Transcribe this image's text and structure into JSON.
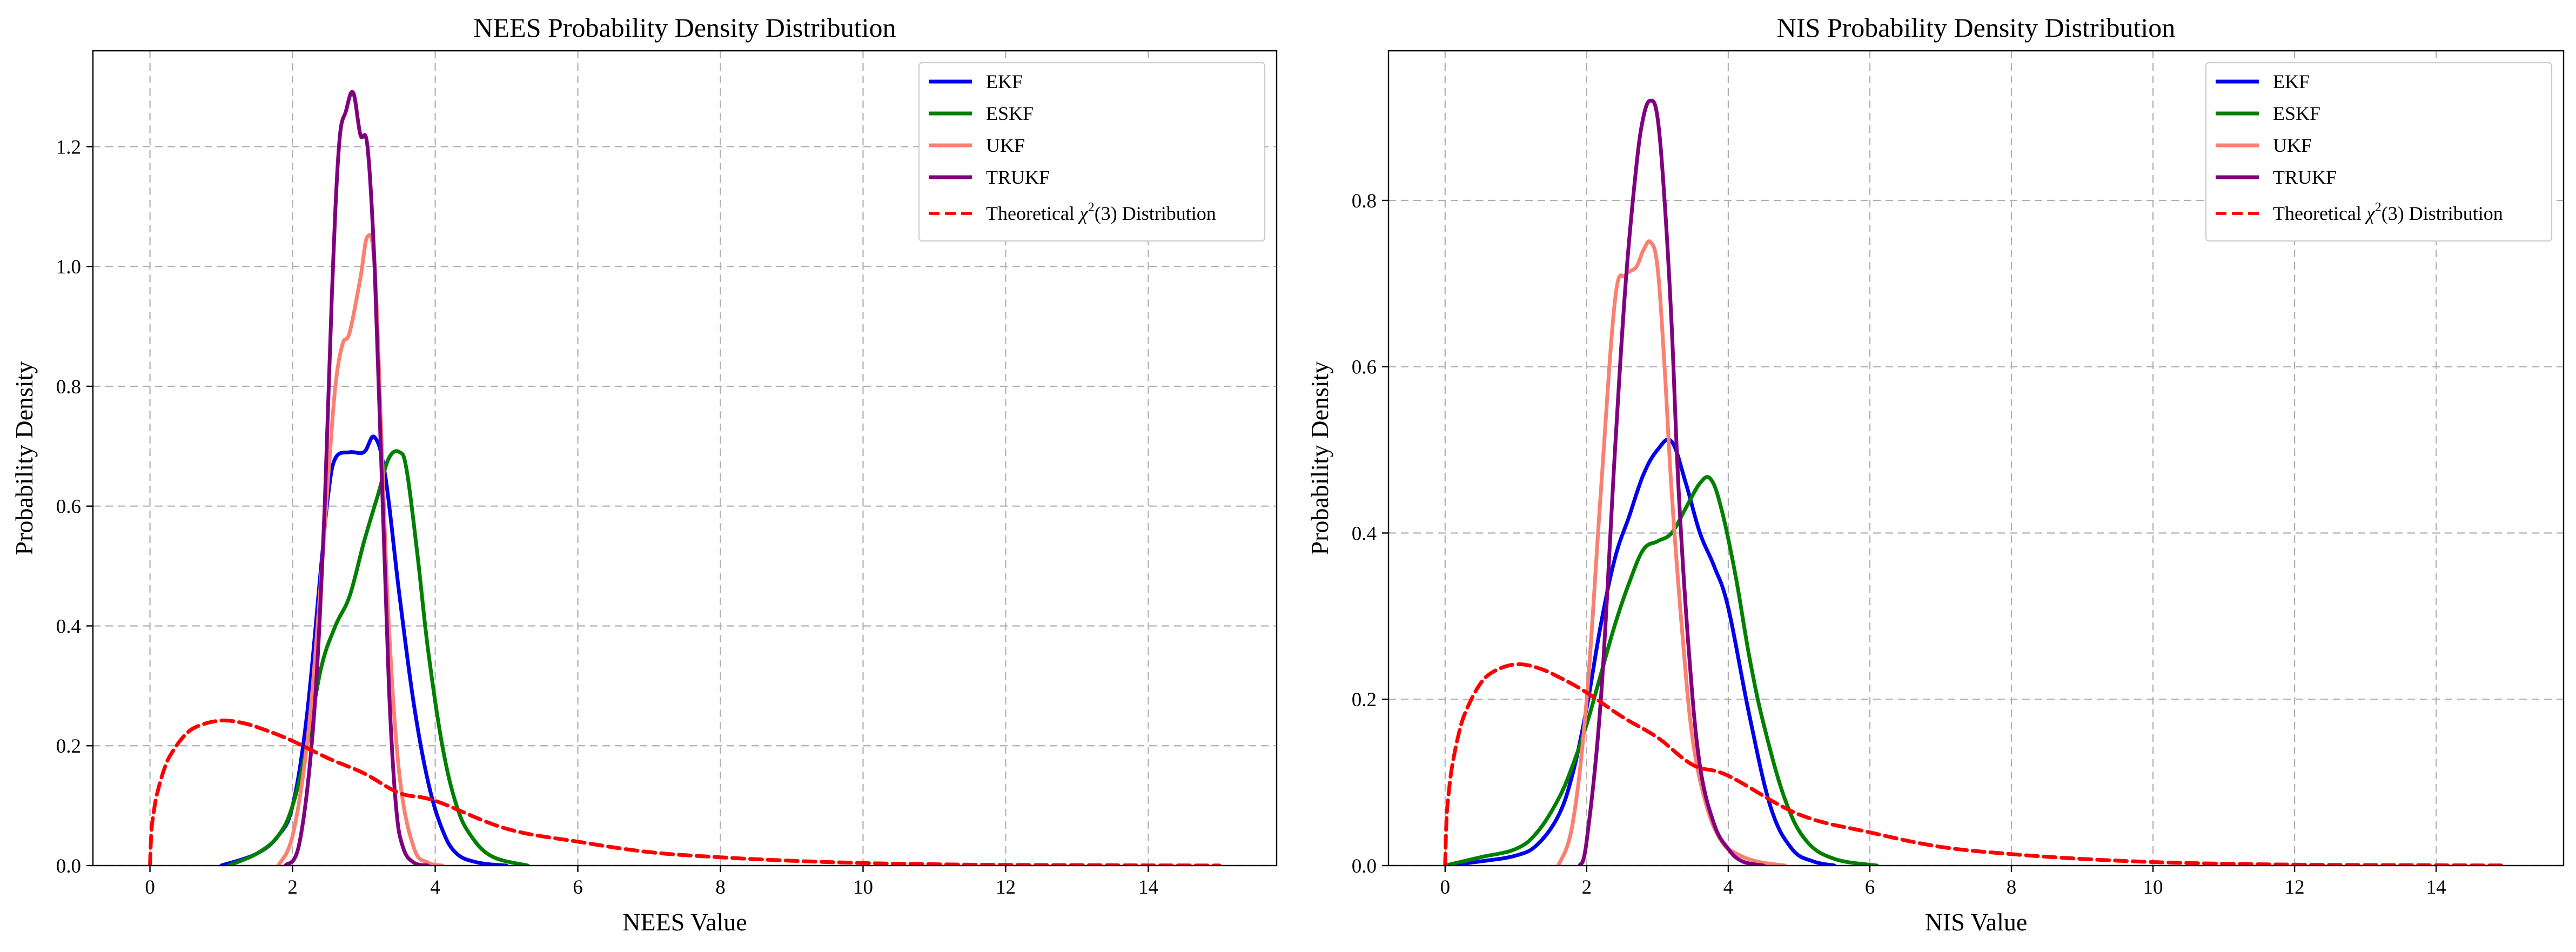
{
  "chart_data": [
    {
      "type": "line",
      "title": "NEES Probability Density Distribution",
      "xlabel": "NEES Value",
      "ylabel": "Probability Density",
      "xlim": [
        -0.8,
        15.8
      ],
      "ylim": [
        0,
        1.36
      ],
      "xticks": [
        0,
        2,
        4,
        6,
        8,
        10,
        12,
        14
      ],
      "yticks": [
        0.0,
        0.2,
        0.4,
        0.6,
        0.8,
        1.0,
        1.2
      ],
      "grid": true,
      "legend_position": "top-right",
      "series": [
        {
          "name": "EKF",
          "color": "#0000ee",
          "dashed": false,
          "x": [
            1.0,
            1.5,
            1.8,
            2.0,
            2.2,
            2.4,
            2.5,
            2.6,
            2.8,
            3.0,
            3.15,
            3.3,
            3.5,
            3.7,
            3.9,
            4.1,
            4.3,
            4.6,
            5.0
          ],
          "y": [
            0.0,
            0.02,
            0.05,
            0.1,
            0.25,
            0.5,
            0.62,
            0.68,
            0.69,
            0.69,
            0.715,
            0.65,
            0.45,
            0.27,
            0.14,
            0.06,
            0.02,
            0.005,
            0.0
          ]
        },
        {
          "name": "ESKF",
          "color": "#008000",
          "dashed": false,
          "x": [
            1.1,
            1.5,
            1.8,
            2.0,
            2.2,
            2.4,
            2.6,
            2.8,
            3.0,
            3.2,
            3.35,
            3.5,
            3.6,
            3.75,
            3.9,
            4.1,
            4.3,
            4.5,
            4.8,
            5.3
          ],
          "y": [
            0.0,
            0.02,
            0.05,
            0.1,
            0.2,
            0.33,
            0.4,
            0.45,
            0.54,
            0.62,
            0.68,
            0.69,
            0.66,
            0.52,
            0.36,
            0.2,
            0.1,
            0.05,
            0.015,
            0.0
          ]
        },
        {
          "name": "UKF",
          "color": "#fa8072",
          "dashed": false,
          "x": [
            1.8,
            2.0,
            2.2,
            2.35,
            2.5,
            2.6,
            2.7,
            2.8,
            2.95,
            3.05,
            3.15,
            3.25,
            3.35,
            3.5,
            3.7,
            3.9,
            4.1
          ],
          "y": [
            0.0,
            0.05,
            0.2,
            0.4,
            0.65,
            0.8,
            0.87,
            0.89,
            0.98,
            1.05,
            1.0,
            0.7,
            0.4,
            0.15,
            0.03,
            0.005,
            0.0
          ]
        },
        {
          "name": "TRUKF",
          "color": "#800080",
          "dashed": false,
          "x": [
            1.9,
            2.1,
            2.3,
            2.45,
            2.55,
            2.65,
            2.75,
            2.85,
            2.95,
            3.05,
            3.15,
            3.25,
            3.35,
            3.45,
            3.55,
            3.7,
            3.9
          ],
          "y": [
            0.0,
            0.04,
            0.25,
            0.6,
            0.95,
            1.2,
            1.26,
            1.29,
            1.22,
            1.2,
            1.0,
            0.65,
            0.3,
            0.1,
            0.03,
            0.005,
            0.0
          ]
        },
        {
          "name": "Theoretical χ²(3) Distribution",
          "color": "#ff0000",
          "dashed": true,
          "x": [
            0.0,
            0.02,
            0.05,
            0.1,
            0.2,
            0.3,
            0.5,
            0.7,
            1.0,
            1.3,
            1.6,
            2.0,
            2.5,
            3.0,
            3.5,
            4.0,
            5.0,
            6.0,
            7.0,
            8.0,
            9.0,
            10.0,
            11.0,
            12.0,
            13.0,
            14.0,
            15.0
          ],
          "y": [
            0.0,
            0.056,
            0.087,
            0.12,
            0.161,
            0.187,
            0.219,
            0.234,
            0.242,
            0.238,
            0.227,
            0.208,
            0.179,
            0.154,
            0.121,
            0.108,
            0.0615,
            0.0399,
            0.0225,
            0.0138,
            0.008,
            0.0042,
            0.0022,
            0.0011,
            0.0006,
            0.0003,
            0.0001
          ]
        }
      ]
    },
    {
      "type": "line",
      "title": "NIS Probability Density Distribution",
      "xlabel": "NIS Value",
      "ylabel": "Probability Density",
      "xlim": [
        -0.8,
        15.8
      ],
      "ylim": [
        0,
        0.98
      ],
      "xticks": [
        0,
        2,
        4,
        6,
        8,
        10,
        12,
        14
      ],
      "yticks": [
        0.0,
        0.2,
        0.4,
        0.6,
        0.8
      ],
      "grid": true,
      "legend_position": "top-right",
      "series": [
        {
          "name": "EKF",
          "color": "#0000ee",
          "dashed": false,
          "x": [
            0.0,
            0.5,
            1.0,
            1.3,
            1.6,
            1.8,
            2.0,
            2.2,
            2.4,
            2.6,
            2.8,
            3.0,
            3.2,
            3.4,
            3.6,
            3.8,
            4.0,
            4.3,
            4.6,
            4.9,
            5.2,
            5.5
          ],
          "y": [
            0.0,
            0.005,
            0.012,
            0.025,
            0.06,
            0.11,
            0.19,
            0.29,
            0.37,
            0.42,
            0.47,
            0.5,
            0.51,
            0.46,
            0.4,
            0.36,
            0.31,
            0.18,
            0.07,
            0.02,
            0.005,
            0.0
          ]
        },
        {
          "name": "ESKF",
          "color": "#008000",
          "dashed": false,
          "x": [
            0.0,
            0.5,
            1.0,
            1.3,
            1.6,
            1.8,
            2.0,
            2.2,
            2.4,
            2.6,
            2.8,
            3.0,
            3.2,
            3.4,
            3.6,
            3.75,
            3.9,
            4.1,
            4.3,
            4.5,
            4.8,
            5.1,
            5.5,
            6.1
          ],
          "y": [
            0.0,
            0.01,
            0.02,
            0.04,
            0.08,
            0.12,
            0.17,
            0.23,
            0.29,
            0.34,
            0.38,
            0.39,
            0.4,
            0.43,
            0.46,
            0.465,
            0.43,
            0.35,
            0.25,
            0.17,
            0.08,
            0.03,
            0.008,
            0.0
          ]
        },
        {
          "name": "UKF",
          "color": "#fa8072",
          "dashed": false,
          "x": [
            1.6,
            1.8,
            2.0,
            2.2,
            2.4,
            2.55,
            2.7,
            2.8,
            2.9,
            3.0,
            3.1,
            3.2,
            3.35,
            3.5,
            3.7,
            3.9,
            4.1,
            4.4,
            4.8
          ],
          "y": [
            0.0,
            0.05,
            0.2,
            0.45,
            0.68,
            0.71,
            0.72,
            0.74,
            0.75,
            0.72,
            0.6,
            0.45,
            0.28,
            0.15,
            0.07,
            0.03,
            0.015,
            0.005,
            0.0
          ]
        },
        {
          "name": "TRUKF",
          "color": "#800080",
          "dashed": false,
          "x": [
            1.9,
            2.0,
            2.2,
            2.4,
            2.55,
            2.7,
            2.8,
            2.9,
            3.0,
            3.1,
            3.2,
            3.3,
            3.45,
            3.6,
            3.8,
            4.0,
            4.2,
            4.5
          ],
          "y": [
            0.0,
            0.03,
            0.2,
            0.5,
            0.7,
            0.84,
            0.9,
            0.92,
            0.9,
            0.8,
            0.65,
            0.45,
            0.25,
            0.12,
            0.05,
            0.02,
            0.005,
            0.0
          ]
        },
        {
          "name": "Theoretical χ²(3) Distribution",
          "color": "#ff0000",
          "dashed": true,
          "x": [
            0.0,
            0.02,
            0.05,
            0.1,
            0.2,
            0.3,
            0.5,
            0.7,
            1.0,
            1.3,
            1.6,
            2.0,
            2.5,
            3.0,
            3.5,
            4.0,
            5.0,
            6.0,
            7.0,
            8.0,
            9.0,
            10.0,
            11.0,
            12.0,
            13.0,
            14.0,
            15.0
          ],
          "y": [
            0.0,
            0.056,
            0.087,
            0.12,
            0.161,
            0.187,
            0.219,
            0.234,
            0.242,
            0.238,
            0.227,
            0.208,
            0.179,
            0.154,
            0.121,
            0.108,
            0.0615,
            0.0399,
            0.0225,
            0.0138,
            0.008,
            0.0042,
            0.0022,
            0.0011,
            0.0006,
            0.0003,
            0.0001
          ]
        }
      ]
    }
  ]
}
